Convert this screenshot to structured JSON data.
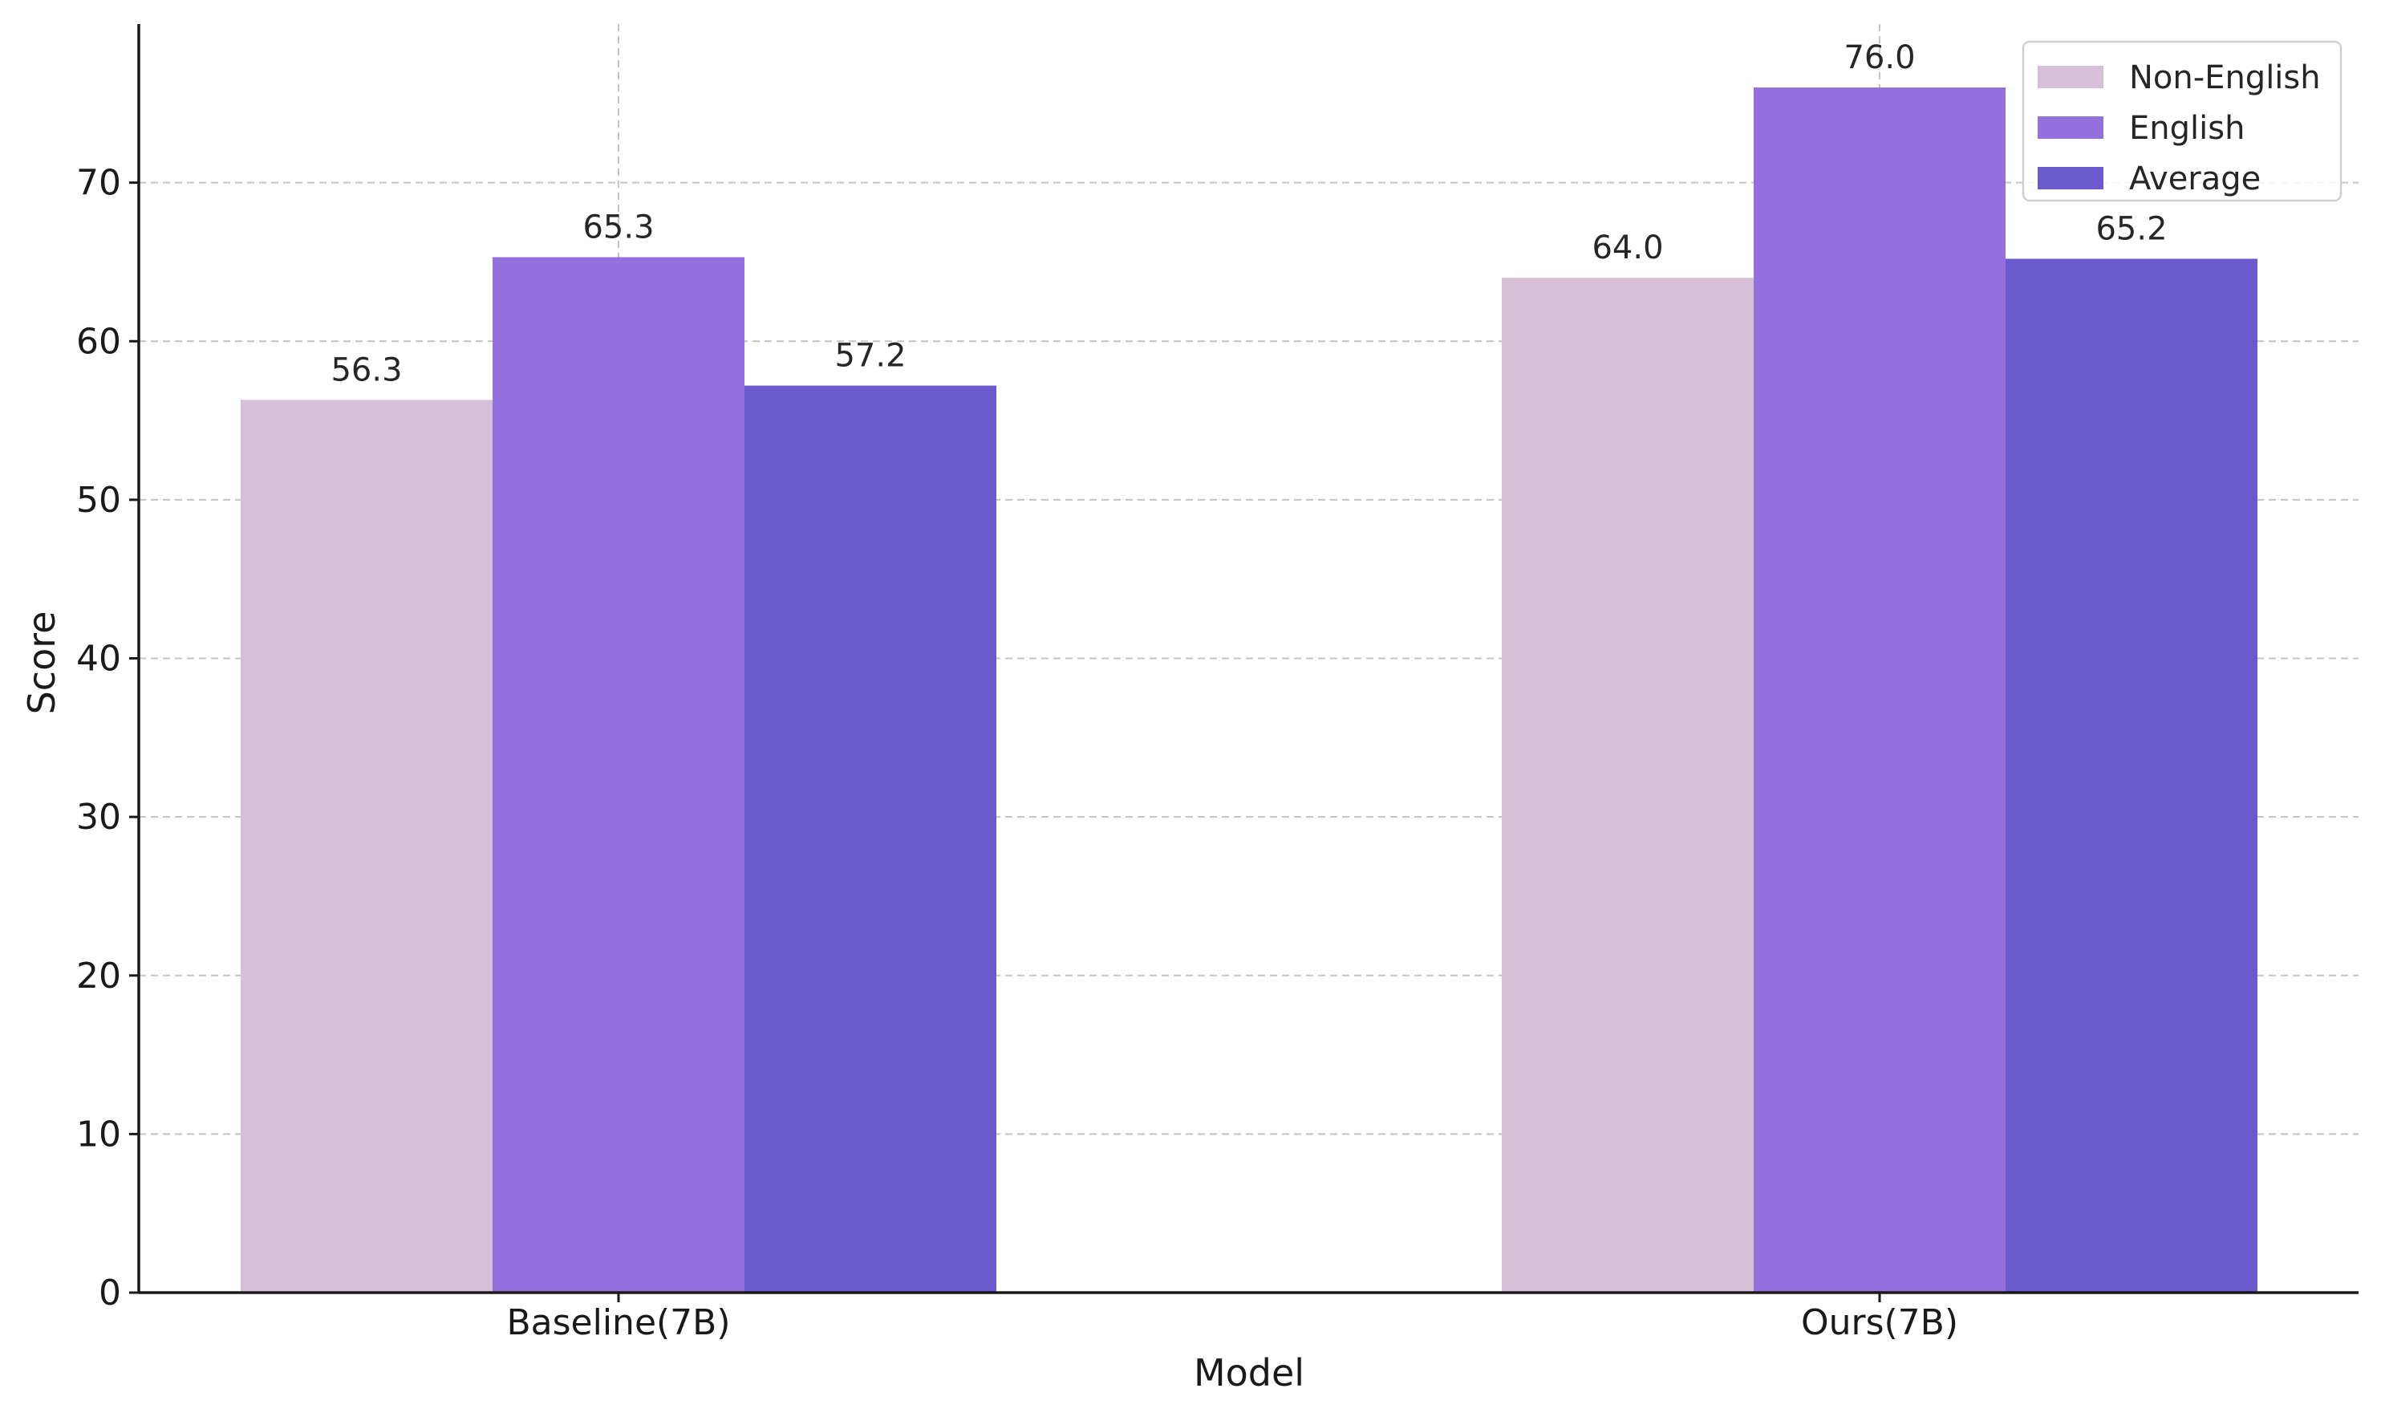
{
  "chart_data": {
    "type": "bar",
    "title": "",
    "xlabel": "Model",
    "ylabel": "Score",
    "categories": [
      "Baseline(7B)",
      "Ours(7B)"
    ],
    "series": [
      {
        "name": "Non-English",
        "values": [
          56.3,
          64.0
        ],
        "color": "#d8bfd8",
        "labels": [
          "56.3",
          "64.0"
        ]
      },
      {
        "name": "English",
        "values": [
          65.3,
          76.0
        ],
        "color": "#9370db",
        "labels": [
          "65.3",
          "76.0"
        ]
      },
      {
        "name": "Average",
        "values": [
          57.2,
          65.2
        ],
        "color": "#6a5acd",
        "labels": [
          "57.2",
          "65.2"
        ]
      }
    ],
    "ylim": [
      0,
      80
    ],
    "yticks": [
      0,
      10,
      20,
      30,
      40,
      50,
      60,
      70
    ],
    "ytick_labels": [
      "0",
      "10",
      "20",
      "30",
      "40",
      "50",
      "60",
      "70"
    ],
    "grid": true,
    "legend_position": "top-right"
  }
}
